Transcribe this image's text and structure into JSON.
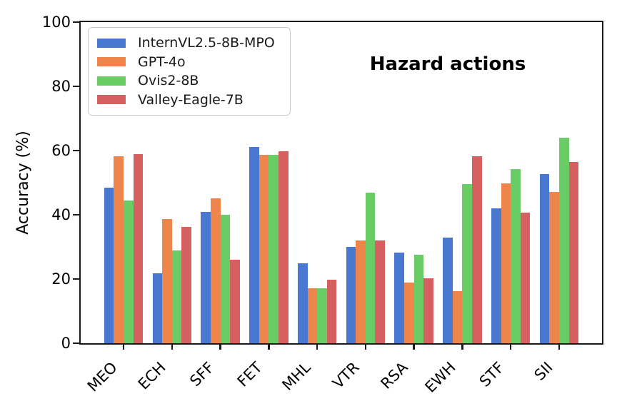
{
  "chart_data": {
    "type": "bar",
    "title": "Hazard actions",
    "xlabel": "",
    "ylabel": "Accuracy (%)",
    "ylim": [
      0,
      100
    ],
    "yticks": [
      0,
      20,
      40,
      60,
      80,
      100
    ],
    "grid": false,
    "legend_position": "upper left",
    "categories": [
      "MEO",
      "ECH",
      "SFF",
      "FET",
      "MHL",
      "VTR",
      "RSA",
      "EWH",
      "STF",
      "SII"
    ],
    "series": [
      {
        "name": "InternVL2.5-8B-MPO",
        "color": "#4878D0",
        "values": [
          48.4,
          21.8,
          41.0,
          61.1,
          24.8,
          29.9,
          28.2,
          33.0,
          42.1,
          52.7
        ]
      },
      {
        "name": "GPT-4o",
        "color": "#EE854A",
        "values": [
          58.2,
          38.7,
          45.2,
          58.6,
          17.2,
          31.9,
          18.9,
          16.3,
          49.7,
          47.1
        ]
      },
      {
        "name": "Ovis2-8B",
        "color": "#6ACC64",
        "values": [
          44.4,
          28.9,
          40.0,
          58.6,
          17.2,
          46.9,
          27.5,
          49.6,
          54.2,
          64.0
        ]
      },
      {
        "name": "Valley-Eagle-7B",
        "color": "#D65F5F",
        "values": [
          58.9,
          36.3,
          26.0,
          59.8,
          19.8,
          31.9,
          20.2,
          58.2,
          40.7,
          56.4
        ]
      }
    ],
    "axis_color": "#1a1a1a"
  }
}
